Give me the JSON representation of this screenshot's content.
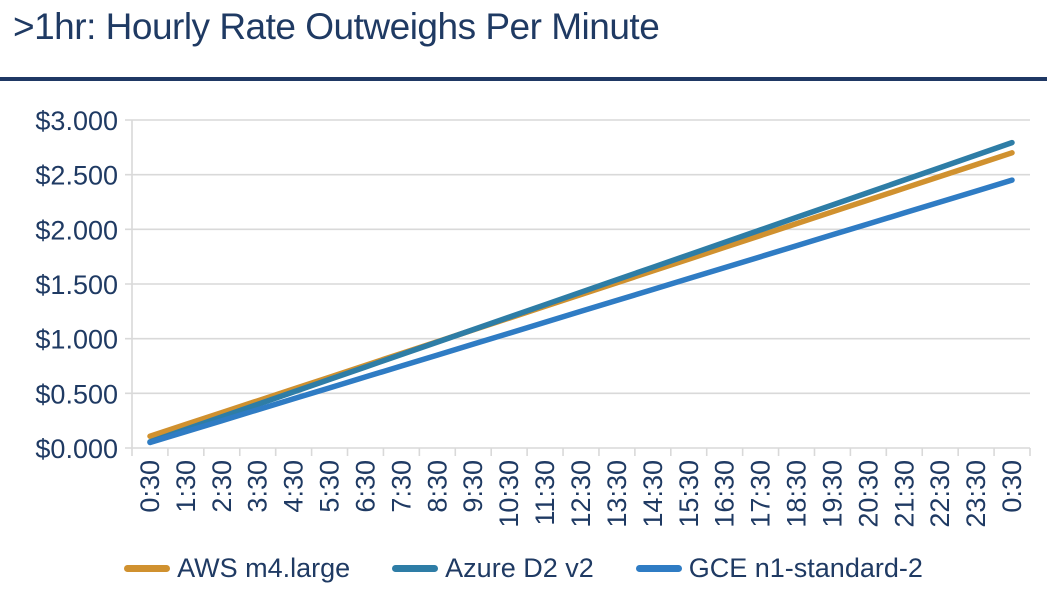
{
  "page": {
    "title": ">1hr: Hourly Rate Outweighs Per Minute"
  },
  "colors": {
    "title_text": "#1f3a63",
    "divider": "#1f3864",
    "axis_text": "#1f3a63",
    "gridline": "#d9d9d9",
    "background": "#ffffff",
    "aws_orange": "#d0912f",
    "azure_teal": "#2e7da6",
    "gce_blue": "#2f7cc4"
  },
  "chart_data": {
    "type": "line",
    "title": ">1hr: Hourly Rate Outweighs Per Minute",
    "xlabel": "",
    "ylabel": "",
    "grid": true,
    "legend_position": "bottom",
    "ylim": [
      0,
      3
    ],
    "y_tick_labels": [
      "$3.000",
      "$2.500",
      "$2.000",
      "$1.500",
      "$1.000",
      "$0.500",
      "$0.000"
    ],
    "y_tick_values": [
      3.0,
      2.5,
      2.0,
      1.5,
      1.0,
      0.5,
      0.0
    ],
    "categories": [
      "0:30",
      "1:30",
      "2:30",
      "3:30",
      "4:30",
      "5:30",
      "6:30",
      "7:30",
      "8:30",
      "9:30",
      "10:30",
      "11:30",
      "12:30",
      "13:30",
      "14:30",
      "15:30",
      "16:30",
      "17:30",
      "18:30",
      "19:30",
      "20:30",
      "21:30",
      "22:30",
      "23:30",
      "0:30"
    ],
    "series": [
      {
        "name": "AWS m4.large",
        "color": "#d0912f",
        "values": [
          0.108,
          0.216,
          0.324,
          0.432,
          0.54,
          0.648,
          0.756,
          0.864,
          0.972,
          1.08,
          1.188,
          1.296,
          1.404,
          1.512,
          1.62,
          1.728,
          1.836,
          1.944,
          2.052,
          2.16,
          2.268,
          2.376,
          2.484,
          2.592,
          2.7
        ]
      },
      {
        "name": "Azure D2 v2",
        "color": "#2e7da6",
        "values": [
          0.057,
          0.171,
          0.285,
          0.399,
          0.513,
          0.627,
          0.741,
          0.855,
          0.969,
          1.083,
          1.197,
          1.311,
          1.425,
          1.539,
          1.653,
          1.767,
          1.881,
          1.995,
          2.109,
          2.223,
          2.337,
          2.451,
          2.565,
          2.679,
          2.793
        ]
      },
      {
        "name": "GCE n1-standard-2",
        "color": "#2f7cc4",
        "values": [
          0.05,
          0.15,
          0.25,
          0.35,
          0.45,
          0.55,
          0.65,
          0.75,
          0.85,
          0.95,
          1.05,
          1.15,
          1.25,
          1.35,
          1.45,
          1.55,
          1.65,
          1.75,
          1.85,
          1.95,
          2.05,
          2.15,
          2.25,
          2.35,
          2.45
        ]
      }
    ]
  }
}
